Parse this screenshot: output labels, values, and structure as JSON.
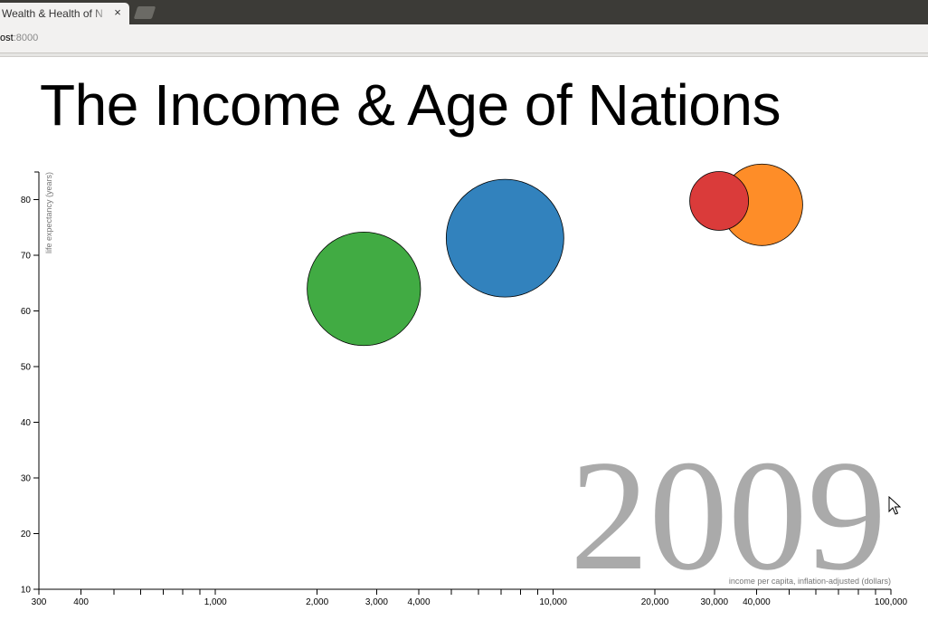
{
  "browser": {
    "tab_title": "Wealth & Health of N",
    "close_glyph": "×",
    "url_host": "ost",
    "url_port": ":8000"
  },
  "page": {
    "heading": "The Income & Age of Nations"
  },
  "chart_data": {
    "type": "scatter",
    "title": "The Income & Age of Nations",
    "xlabel": "income per capita, inflation-adjusted (dollars)",
    "ylabel": "life expectancy (years)",
    "x_scale": "log",
    "xlim": [
      300,
      100000
    ],
    "ylim": [
      10,
      85
    ],
    "x_ticks": [
      300,
      400,
      1000,
      2000,
      3000,
      4000,
      10000,
      20000,
      30000,
      40000,
      100000
    ],
    "x_tick_labels": [
      "300",
      "400",
      "1,000",
      "2,000",
      "3,000",
      "4,000",
      "10,000",
      "20,000",
      "30,000",
      "40,000",
      "100,000"
    ],
    "y_ticks": [
      10,
      20,
      30,
      40,
      50,
      60,
      70,
      80
    ],
    "y_tick_labels": [
      "10",
      "20",
      "30",
      "40",
      "50",
      "60",
      "70",
      "80"
    ],
    "year_label": "2009",
    "grid": false,
    "bubble_area_scale": "population",
    "points": [
      {
        "x": 2750,
        "y": 64.0,
        "relative_size": 0.93,
        "color": "#41ab43"
      },
      {
        "x": 7200,
        "y": 73.1,
        "relative_size": 1.0,
        "color": "#3282bd"
      },
      {
        "x": 31000,
        "y": 79.8,
        "relative_size": 0.25,
        "color": "#da3b3a"
      },
      {
        "x": 41500,
        "y": 79.1,
        "relative_size": 0.48,
        "color": "#fe8d28"
      }
    ]
  }
}
